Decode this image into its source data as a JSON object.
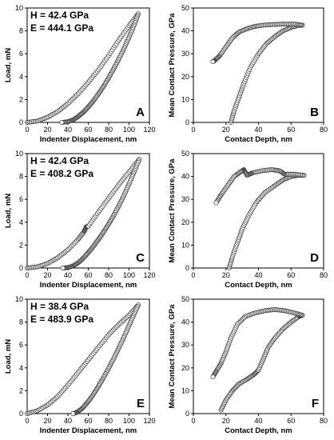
{
  "chart_data": [
    {
      "type": "scatter",
      "panel": "A",
      "xlabel": "Indenter Displacement, nm",
      "ylabel": "Load, mN",
      "xlim": [
        0,
        120
      ],
      "ylim": [
        0,
        10
      ],
      "xticks": [
        "0",
        "20",
        "40",
        "60",
        "80",
        "100",
        "120"
      ],
      "yticks": [
        "0",
        "2",
        "4",
        "6",
        "8",
        "10"
      ],
      "annotations": [
        "H = 42.4 GPa",
        "E = 444.1 GPa"
      ],
      "series": [
        {
          "values": [
            [
              0,
              0
            ],
            [
              10,
              0.12
            ],
            [
              20,
              0.45
            ],
            [
              30,
              0.95
            ],
            [
              40,
              1.65
            ],
            [
              50,
              2.5
            ],
            [
              60,
              3.5
            ],
            [
              70,
              4.6
            ],
            [
              80,
              5.85
            ],
            [
              90,
              7.2
            ],
            [
              100,
              8.45
            ],
            [
              109,
              9.5
            ]
          ]
        },
        {
          "values": [
            [
              109,
              9.5
            ],
            [
              105,
              8.5
            ],
            [
              100,
              7.45
            ],
            [
              95,
              6.45
            ],
            [
              90,
              5.55
            ],
            [
              85,
              4.7
            ],
            [
              80,
              3.9
            ],
            [
              75,
              3.15
            ],
            [
              70,
              2.5
            ],
            [
              65,
              1.88
            ],
            [
              60,
              1.35
            ],
            [
              55,
              0.88
            ],
            [
              50,
              0.5
            ],
            [
              45,
              0.22
            ],
            [
              40,
              0.06
            ],
            [
              34,
              0
            ]
          ]
        }
      ]
    },
    {
      "type": "scatter",
      "panel": "B",
      "xlabel": "Contact Depth, nm",
      "ylabel": "Mean Contact Pressure, GPa",
      "xlim": [
        0,
        80
      ],
      "ylim": [
        0,
        50
      ],
      "xticks": [
        "0",
        "20",
        "40",
        "60",
        "80"
      ],
      "yticks": [
        "0",
        "10",
        "20",
        "30",
        "40",
        "50"
      ],
      "series": [
        {
          "values": [
            [
              23,
              0
            ],
            [
              25,
              5
            ],
            [
              28,
              11
            ],
            [
              31,
              17
            ],
            [
              35,
              24
            ],
            [
              40,
              30
            ],
            [
              45,
              34.5
            ],
            [
              50,
              37.5
            ],
            [
              55,
              40
            ],
            [
              60,
              41.5
            ],
            [
              65,
              42.5
            ],
            [
              67,
              42.5
            ]
          ]
        },
        {
          "values": [
            [
              67,
              42.5
            ],
            [
              62,
              43
            ],
            [
              56,
              43
            ],
            [
              50,
              42.8
            ],
            [
              44,
              42.6
            ],
            [
              38,
              42
            ],
            [
              33,
              41
            ],
            [
              28,
              39.5
            ],
            [
              24,
              37
            ],
            [
              20,
              33
            ],
            [
              16,
              29
            ],
            [
              13,
              27
            ],
            [
              12,
              26.5
            ]
          ]
        }
      ]
    },
    {
      "type": "scatter",
      "panel": "C",
      "xlabel": "Indenter Displacement, nm",
      "ylabel": "Load, mN",
      "xlim": [
        0,
        120
      ],
      "ylim": [
        0,
        10
      ],
      "xticks": [
        "0",
        "20",
        "40",
        "60",
        "80",
        "100",
        "120"
      ],
      "yticks": [
        "0",
        "2",
        "4",
        "6",
        "8",
        "10"
      ],
      "annotations": [
        "H = 42.4 GPa",
        "E = 408.2 GPa"
      ],
      "series": [
        {
          "values": [
            [
              0,
              0
            ],
            [
              10,
              0.1
            ],
            [
              20,
              0.4
            ],
            [
              30,
              0.9
            ],
            [
              40,
              1.6
            ],
            [
              50,
              2.5
            ],
            [
              56,
              3.2
            ],
            [
              58,
              3.6
            ],
            [
              60,
              3.65
            ],
            [
              70,
              4.9
            ],
            [
              80,
              6.1
            ],
            [
              90,
              7.3
            ],
            [
              100,
              8.4
            ],
            [
              110,
              9.5
            ]
          ]
        },
        {
          "values": [
            [
              110,
              9.5
            ],
            [
              105,
              8.4
            ],
            [
              100,
              7.35
            ],
            [
              95,
              6.35
            ],
            [
              90,
              5.45
            ],
            [
              85,
              4.6
            ],
            [
              80,
              3.85
            ],
            [
              75,
              3.15
            ],
            [
              70,
              2.5
            ],
            [
              65,
              1.9
            ],
            [
              60,
              1.35
            ],
            [
              55,
              0.85
            ],
            [
              50,
              0.45
            ],
            [
              45,
              0.18
            ],
            [
              40,
              0.04
            ],
            [
              35,
              0
            ]
          ]
        }
      ]
    },
    {
      "type": "scatter",
      "panel": "D",
      "xlabel": "Contact Depth, nm",
      "ylabel": "Mean Contact Pressure, GPa",
      "xlim": [
        0,
        80
      ],
      "ylim": [
        0,
        50
      ],
      "xticks": [
        "0",
        "20",
        "40",
        "60",
        "80"
      ],
      "yticks": [
        "0",
        "10",
        "20",
        "30",
        "40",
        "50"
      ],
      "series": [
        {
          "values": [
            [
              22,
              0
            ],
            [
              24,
              5
            ],
            [
              27,
              11
            ],
            [
              30,
              17
            ],
            [
              34,
              23
            ],
            [
              39,
              29
            ],
            [
              44,
              33
            ],
            [
              50,
              36
            ],
            [
              55,
              38.5
            ],
            [
              60,
              40
            ],
            [
              65,
              40.5
            ],
            [
              68,
              40.5
            ]
          ]
        },
        {
          "values": [
            [
              68,
              40.5
            ],
            [
              62,
              41
            ],
            [
              56,
              41
            ],
            [
              53,
              42.5
            ],
            [
              48,
              43
            ],
            [
              42,
              42.5
            ],
            [
              36,
              41.5
            ],
            [
              33,
              40.5
            ],
            [
              31,
              43
            ],
            [
              29,
              42
            ],
            [
              25,
              40
            ],
            [
              21,
              36
            ],
            [
              17,
              32
            ],
            [
              14,
              28.5
            ]
          ]
        }
      ]
    },
    {
      "type": "scatter",
      "panel": "E",
      "xlabel": "Indenter Displacement, nm",
      "ylabel": "Load, mN",
      "xlim": [
        0,
        120
      ],
      "ylim": [
        0,
        10
      ],
      "xticks": [
        "0",
        "20",
        "40",
        "60",
        "80",
        "100",
        "120"
      ],
      "yticks": [
        "0",
        "2",
        "4",
        "6",
        "8",
        "10"
      ],
      "annotations": [
        "H = 38.4 GPa",
        "E = 483.9 GPa"
      ],
      "series": [
        {
          "values": [
            [
              0,
              0
            ],
            [
              10,
              0.25
            ],
            [
              20,
              0.75
            ],
            [
              30,
              1.5
            ],
            [
              40,
              2.5
            ],
            [
              50,
              3.6
            ],
            [
              60,
              4.7
            ],
            [
              70,
              5.8
            ],
            [
              80,
              6.9
            ],
            [
              90,
              7.8
            ],
            [
              100,
              8.6
            ],
            [
              109,
              9.5
            ]
          ]
        },
        {
          "values": [
            [
              109,
              9.5
            ],
            [
              104,
              8.5
            ],
            [
              99,
              7.5
            ],
            [
              94,
              6.5
            ],
            [
              89,
              5.55
            ],
            [
              84,
              4.65
            ],
            [
              79,
              3.8
            ],
            [
              74,
              3.0
            ],
            [
              69,
              2.25
            ],
            [
              64,
              1.55
            ],
            [
              59,
              0.95
            ],
            [
              54,
              0.45
            ],
            [
              49,
              0.12
            ],
            [
              45,
              0
            ]
          ]
        }
      ]
    },
    {
      "type": "scatter",
      "panel": "F",
      "xlabel": "Contact Depth, nm",
      "ylabel": "Mean Contact Pressure, GPa",
      "xlim": [
        0,
        80
      ],
      "ylim": [
        0,
        50
      ],
      "xticks": [
        "0",
        "20",
        "40",
        "60",
        "80"
      ],
      "yticks": [
        "0",
        "10",
        "20",
        "30",
        "40",
        "50"
      ],
      "series": [
        {
          "values": [
            [
              17,
              1.5
            ],
            [
              20,
              6
            ],
            [
              24,
              10
            ],
            [
              28,
              13
            ],
            [
              33,
              15
            ],
            [
              37,
              17
            ],
            [
              40,
              19
            ],
            [
              43,
              24
            ],
            [
              46,
              29
            ],
            [
              50,
              33
            ],
            [
              55,
              37
            ],
            [
              60,
              40
            ],
            [
              65,
              42.5
            ],
            [
              67,
              43
            ]
          ]
        },
        {
          "values": [
            [
              67,
              43
            ],
            [
              62,
              44
            ],
            [
              56,
              45
            ],
            [
              50,
              45.5
            ],
            [
              44,
              45
            ],
            [
              38,
              44
            ],
            [
              32,
              42.5
            ],
            [
              27,
              39
            ],
            [
              23,
              33
            ],
            [
              20,
              27
            ],
            [
              17,
              22
            ],
            [
              14,
              18.5
            ],
            [
              12,
              16
            ]
          ]
        }
      ]
    }
  ]
}
